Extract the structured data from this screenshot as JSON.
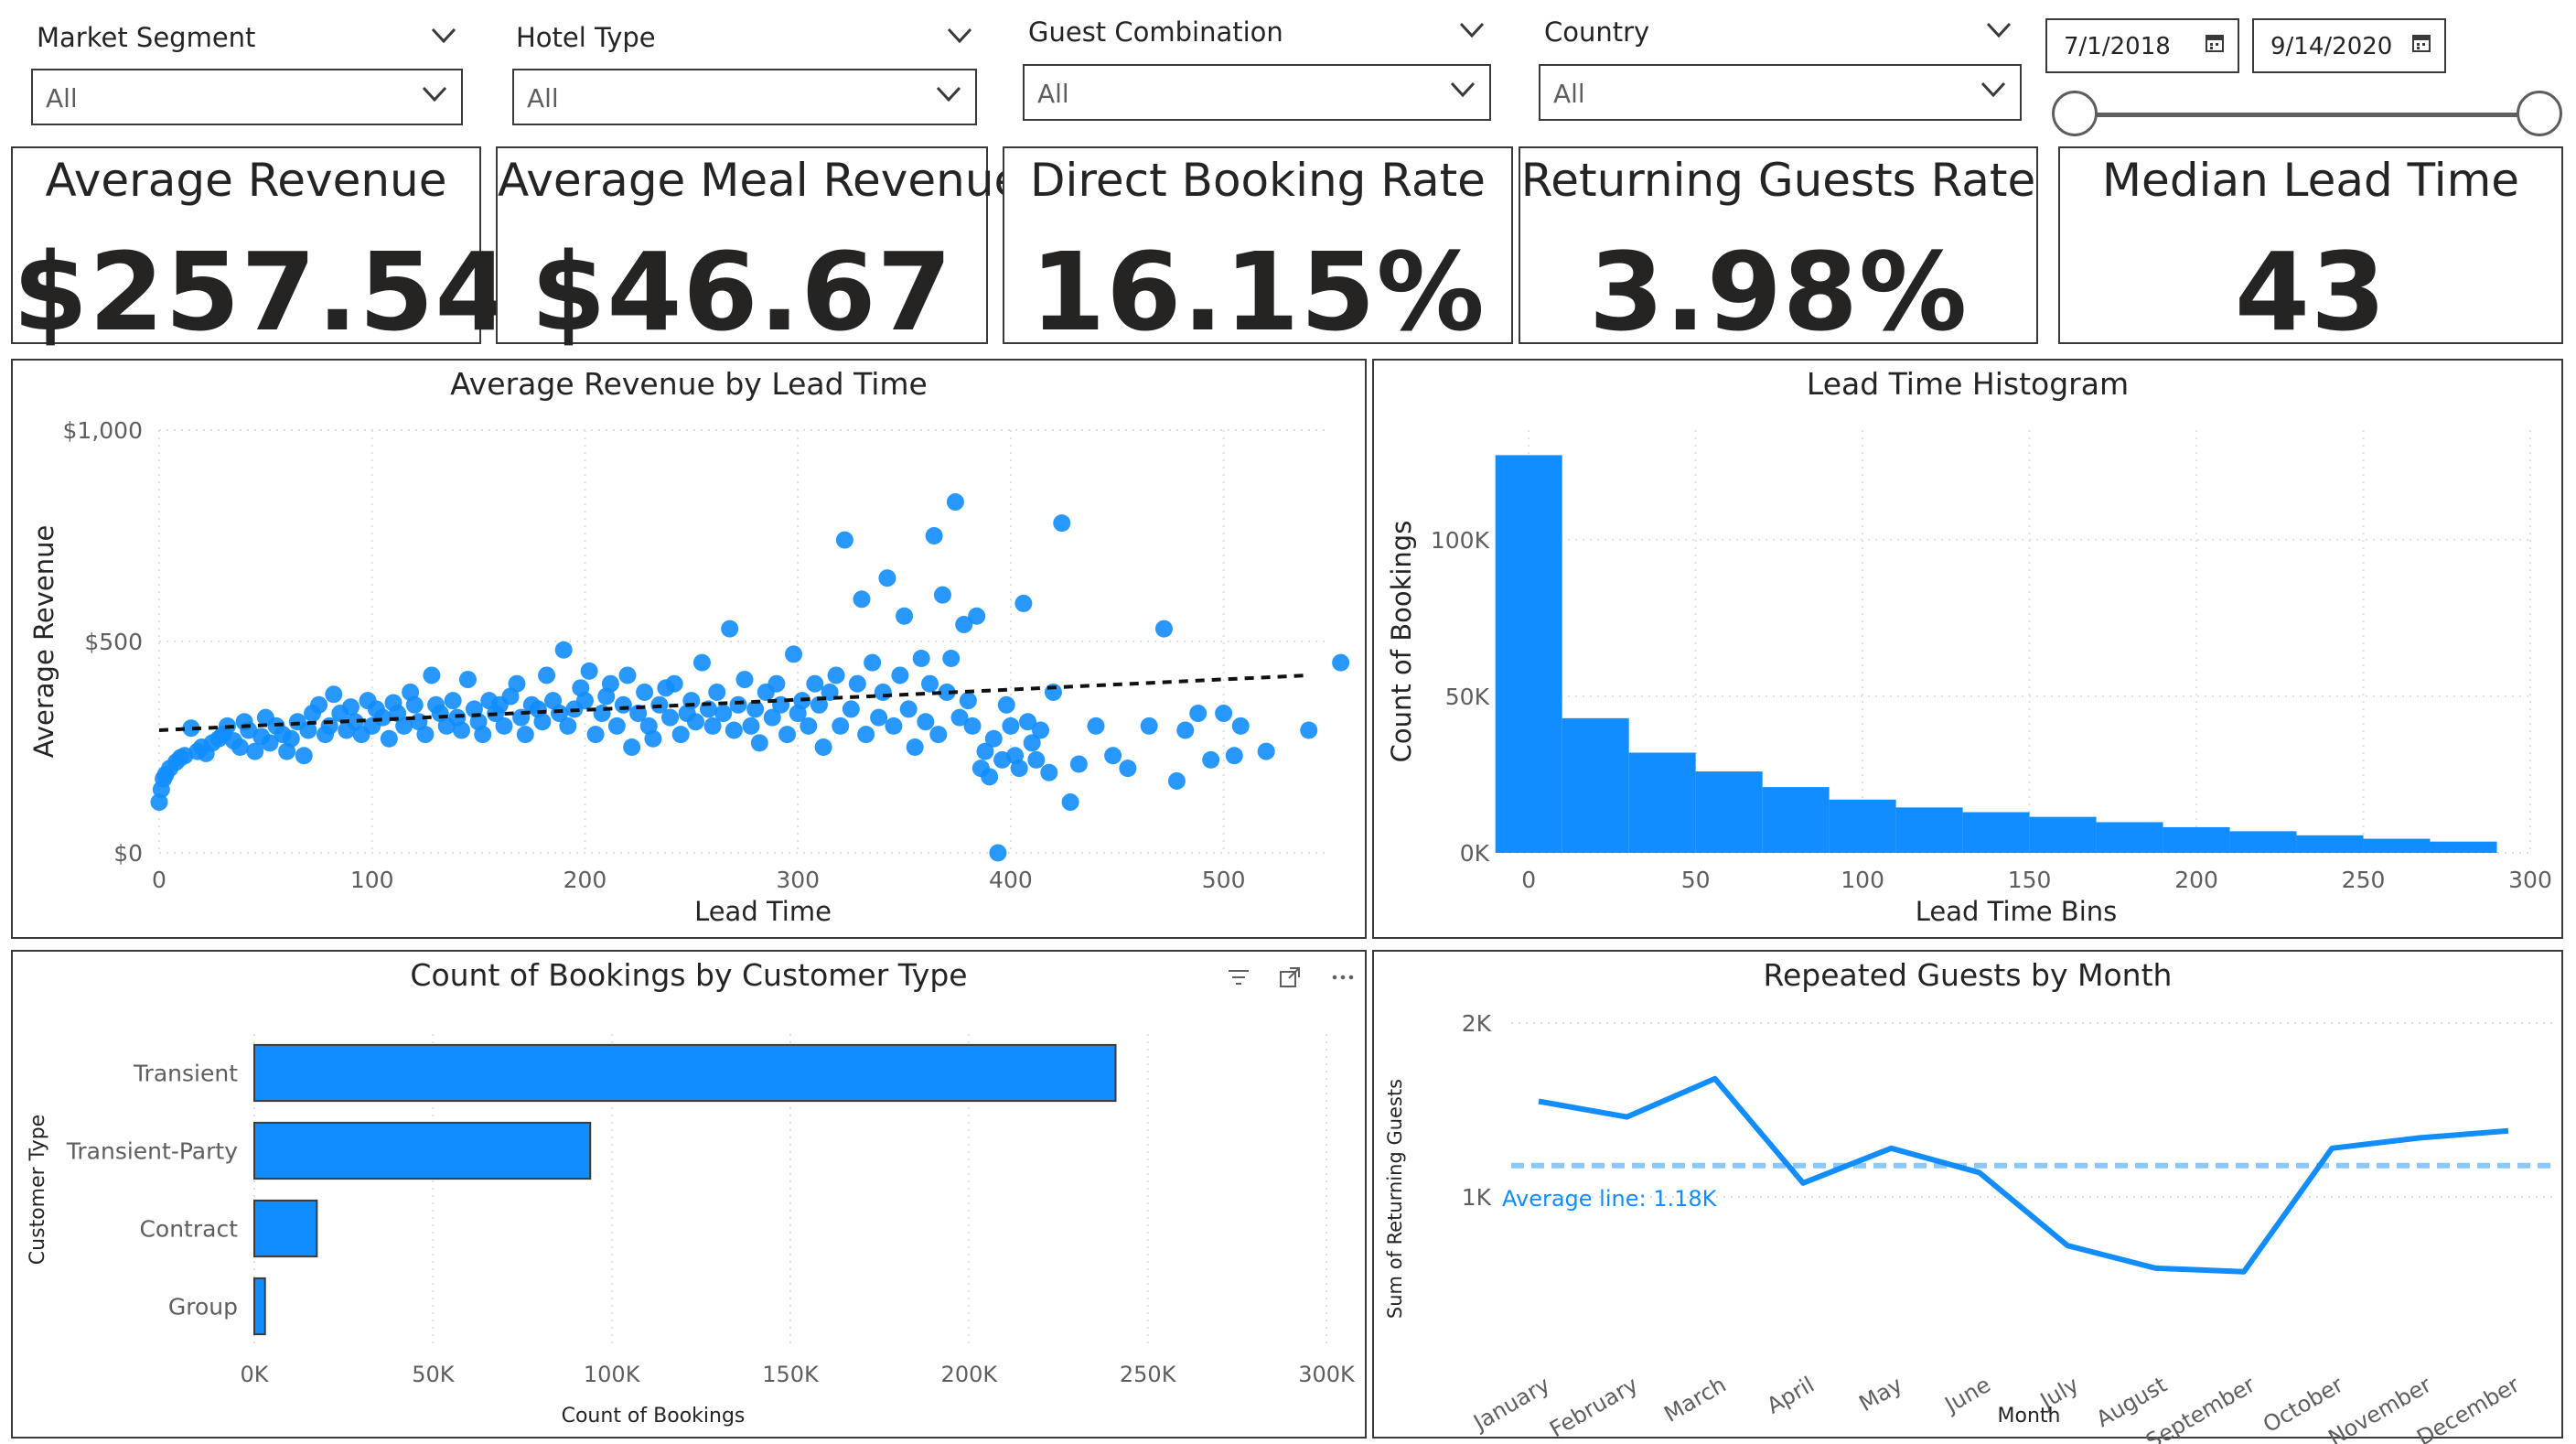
{
  "filters": [
    {
      "title": "Market Segment",
      "value": "All"
    },
    {
      "title": "Hotel Type",
      "value": "All"
    },
    {
      "title": "Guest Combination",
      "value": "All"
    },
    {
      "title": "Country",
      "value": "All"
    }
  ],
  "date_range": {
    "start": "7/1/2018",
    "end": "9/14/2020"
  },
  "kpis": [
    {
      "title": "Average Revenue",
      "value": "$257.54"
    },
    {
      "title": "Average Meal Revenue",
      "value": "$46.67"
    },
    {
      "title": "Direct Booking Rate",
      "value": "16.15%"
    },
    {
      "title": "Returning Guests Rate",
      "value": "3.98%"
    },
    {
      "title": "Median Lead Time",
      "value": "43"
    }
  ],
  "colors": {
    "accent": "#118DFF",
    "border": "#3b3a39",
    "text": "#252423",
    "axis_text": "#605e5c"
  },
  "chart_data": [
    {
      "id": "scatter",
      "type": "scatter",
      "title": "Average Revenue by Lead Time",
      "xlabel": "Lead Time",
      "ylabel": "Average Revenue",
      "xlim": [
        0,
        550
      ],
      "ylim": [
        0,
        1000
      ],
      "xticks": [
        "0",
        "100",
        "200",
        "300",
        "400",
        "500"
      ],
      "xtick_values": [
        0,
        100,
        200,
        300,
        400,
        500
      ],
      "yticks": [
        "$0",
        "$500",
        "$1,000"
      ],
      "ytick_values": [
        0,
        500,
        1000
      ],
      "trendline": {
        "from": [
          0,
          290
        ],
        "to": [
          540,
          420
        ]
      },
      "points": [
        [
          0,
          120
        ],
        [
          1,
          150
        ],
        [
          2,
          175
        ],
        [
          3,
          185
        ],
        [
          5,
          200
        ],
        [
          8,
          215
        ],
        [
          10,
          225
        ],
        [
          12,
          230
        ],
        [
          15,
          295
        ],
        [
          18,
          240
        ],
        [
          20,
          250
        ],
        [
          22,
          235
        ],
        [
          25,
          260
        ],
        [
          28,
          270
        ],
        [
          30,
          280
        ],
        [
          32,
          300
        ],
        [
          35,
          265
        ],
        [
          38,
          250
        ],
        [
          40,
          310
        ],
        [
          42,
          290
        ],
        [
          45,
          240
        ],
        [
          48,
          275
        ],
        [
          50,
          320
        ],
        [
          52,
          260
        ],
        [
          55,
          300
        ],
        [
          58,
          280
        ],
        [
          60,
          240
        ],
        [
          62,
          270
        ],
        [
          65,
          310
        ],
        [
          68,
          230
        ],
        [
          70,
          290
        ],
        [
          72,
          330
        ],
        [
          75,
          350
        ],
        [
          78,
          280
        ],
        [
          80,
          300
        ],
        [
          82,
          375
        ],
        [
          85,
          330
        ],
        [
          88,
          290
        ],
        [
          90,
          345
        ],
        [
          92,
          310
        ],
        [
          95,
          280
        ],
        [
          98,
          360
        ],
        [
          100,
          300
        ],
        [
          102,
          340
        ],
        [
          105,
          320
        ],
        [
          108,
          270
        ],
        [
          110,
          355
        ],
        [
          112,
          330
        ],
        [
          115,
          300
        ],
        [
          118,
          380
        ],
        [
          120,
          350
        ],
        [
          122,
          310
        ],
        [
          125,
          280
        ],
        [
          128,
          420
        ],
        [
          130,
          350
        ],
        [
          132,
          330
        ],
        [
          135,
          300
        ],
        [
          138,
          360
        ],
        [
          140,
          320
        ],
        [
          142,
          290
        ],
        [
          145,
          410
        ],
        [
          148,
          340
        ],
        [
          150,
          310
        ],
        [
          152,
          280
        ],
        [
          155,
          360
        ],
        [
          158,
          330
        ],
        [
          160,
          350
        ],
        [
          162,
          300
        ],
        [
          165,
          370
        ],
        [
          168,
          400
        ],
        [
          170,
          320
        ],
        [
          172,
          280
        ],
        [
          175,
          350
        ],
        [
          178,
          340
        ],
        [
          180,
          310
        ],
        [
          182,
          420
        ],
        [
          185,
          360
        ],
        [
          188,
          330
        ],
        [
          190,
          480
        ],
        [
          192,
          300
        ],
        [
          195,
          340
        ],
        [
          198,
          390
        ],
        [
          200,
          360
        ],
        [
          202,
          430
        ],
        [
          205,
          280
        ],
        [
          208,
          330
        ],
        [
          210,
          370
        ],
        [
          212,
          400
        ],
        [
          215,
          300
        ],
        [
          218,
          350
        ],
        [
          220,
          420
        ],
        [
          222,
          250
        ],
        [
          225,
          330
        ],
        [
          228,
          380
        ],
        [
          230,
          300
        ],
        [
          232,
          270
        ],
        [
          235,
          350
        ],
        [
          238,
          390
        ],
        [
          240,
          320
        ],
        [
          242,
          400
        ],
        [
          245,
          280
        ],
        [
          248,
          330
        ],
        [
          250,
          360
        ],
        [
          252,
          310
        ],
        [
          255,
          450
        ],
        [
          258,
          340
        ],
        [
          260,
          300
        ],
        [
          262,
          380
        ],
        [
          265,
          330
        ],
        [
          268,
          530
        ],
        [
          270,
          290
        ],
        [
          272,
          350
        ],
        [
          275,
          410
        ],
        [
          278,
          300
        ],
        [
          280,
          340
        ],
        [
          282,
          260
        ],
        [
          285,
          380
        ],
        [
          288,
          320
        ],
        [
          290,
          400
        ],
        [
          292,
          350
        ],
        [
          295,
          280
        ],
        [
          298,
          470
        ],
        [
          300,
          330
        ],
        [
          302,
          360
        ],
        [
          305,
          300
        ],
        [
          308,
          400
        ],
        [
          310,
          350
        ],
        [
          312,
          250
        ],
        [
          315,
          380
        ],
        [
          318,
          420
        ],
        [
          320,
          300
        ],
        [
          322,
          740
        ],
        [
          325,
          340
        ],
        [
          328,
          400
        ],
        [
          330,
          600
        ],
        [
          332,
          280
        ],
        [
          335,
          450
        ],
        [
          338,
          320
        ],
        [
          340,
          380
        ],
        [
          342,
          650
        ],
        [
          345,
          300
        ],
        [
          348,
          420
        ],
        [
          350,
          560
        ],
        [
          352,
          340
        ],
        [
          355,
          250
        ],
        [
          358,
          460
        ],
        [
          360,
          310
        ],
        [
          362,
          400
        ],
        [
          364,
          750
        ],
        [
          366,
          280
        ],
        [
          368,
          610
        ],
        [
          370,
          380
        ],
        [
          372,
          460
        ],
        [
          374,
          830
        ],
        [
          376,
          320
        ],
        [
          378,
          540
        ],
        [
          380,
          360
        ],
        [
          382,
          300
        ],
        [
          384,
          560
        ],
        [
          386,
          200
        ],
        [
          388,
          240
        ],
        [
          390,
          180
        ],
        [
          392,
          270
        ],
        [
          394,
          0
        ],
        [
          396,
          220
        ],
        [
          398,
          350
        ],
        [
          400,
          300
        ],
        [
          402,
          230
        ],
        [
          404,
          200
        ],
        [
          406,
          590
        ],
        [
          408,
          310
        ],
        [
          410,
          260
        ],
        [
          412,
          220
        ],
        [
          414,
          290
        ],
        [
          418,
          190
        ],
        [
          420,
          380
        ],
        [
          424,
          780
        ],
        [
          428,
          120
        ],
        [
          432,
          210
        ],
        [
          440,
          300
        ],
        [
          448,
          230
        ],
        [
          455,
          200
        ],
        [
          465,
          300
        ],
        [
          472,
          530
        ],
        [
          478,
          170
        ],
        [
          482,
          290
        ],
        [
          488,
          330
        ],
        [
          494,
          220
        ],
        [
          500,
          330
        ],
        [
          505,
          230
        ],
        [
          508,
          300
        ],
        [
          520,
          240
        ],
        [
          540,
          290
        ],
        [
          555,
          450
        ]
      ]
    },
    {
      "id": "histogram",
      "type": "bar",
      "title": "Lead Time Histogram",
      "xlabel": "Lead Time Bins",
      "ylabel": "Count of Bookings",
      "xlim": [
        -8,
        300
      ],
      "ylim": [
        0,
        135000
      ],
      "xticks": [
        "0",
        "50",
        "100",
        "150",
        "200",
        "250",
        "300"
      ],
      "xtick_values": [
        0,
        50,
        100,
        150,
        200,
        250,
        300
      ],
      "yticks": [
        "0K",
        "50K",
        "100K"
      ],
      "ytick_values": [
        0,
        50000,
        100000
      ],
      "bins": [
        {
          "start": -10,
          "end": 10,
          "value": 127000
        },
        {
          "start": 10,
          "end": 30,
          "value": 43000
        },
        {
          "start": 30,
          "end": 50,
          "value": 32000
        },
        {
          "start": 50,
          "end": 70,
          "value": 26000
        },
        {
          "start": 70,
          "end": 90,
          "value": 21000
        },
        {
          "start": 90,
          "end": 110,
          "value": 17000
        },
        {
          "start": 110,
          "end": 130,
          "value": 14500
        },
        {
          "start": 130,
          "end": 150,
          "value": 13000
        },
        {
          "start": 150,
          "end": 170,
          "value": 11500
        },
        {
          "start": 170,
          "end": 190,
          "value": 9800
        },
        {
          "start": 190,
          "end": 210,
          "value": 8200
        },
        {
          "start": 210,
          "end": 230,
          "value": 6900
        },
        {
          "start": 230,
          "end": 250,
          "value": 5600
        },
        {
          "start": 250,
          "end": 270,
          "value": 4500
        },
        {
          "start": 270,
          "end": 290,
          "value": 3600
        }
      ]
    },
    {
      "id": "customer_type",
      "type": "bar",
      "orientation": "horizontal",
      "title": "Count of Bookings by Customer Type",
      "xlabel": "Count of Bookings",
      "ylabel": "Customer Type",
      "xlim": [
        0,
        300000
      ],
      "xticks": [
        "0K",
        "50K",
        "100K",
        "150K",
        "200K",
        "250K",
        "300K"
      ],
      "xtick_values": [
        0,
        50000,
        100000,
        150000,
        200000,
        250000,
        300000
      ],
      "categories": [
        "Transient",
        "Transient-Party",
        "Contract",
        "Group"
      ],
      "values": [
        241000,
        94000,
        17500,
        3000
      ]
    },
    {
      "id": "repeated_guests",
      "type": "line",
      "title": "Repeated Guests by Month",
      "xlabel": "Month",
      "ylabel": "Sum of Returning Guests",
      "ylim": [
        0,
        2000
      ],
      "yticks": [
        "1K",
        "2K"
      ],
      "ytick_values": [
        1000,
        2000
      ],
      "categories": [
        "January",
        "February",
        "March",
        "April",
        "May",
        "June",
        "July",
        "August",
        "September",
        "October",
        "November",
        "December"
      ],
      "values": [
        1550,
        1460,
        1680,
        1080,
        1280,
        1140,
        720,
        590,
        570,
        1280,
        1340,
        1380
      ],
      "average_value": 1180,
      "average_label": "Average line: 1.18K"
    }
  ]
}
